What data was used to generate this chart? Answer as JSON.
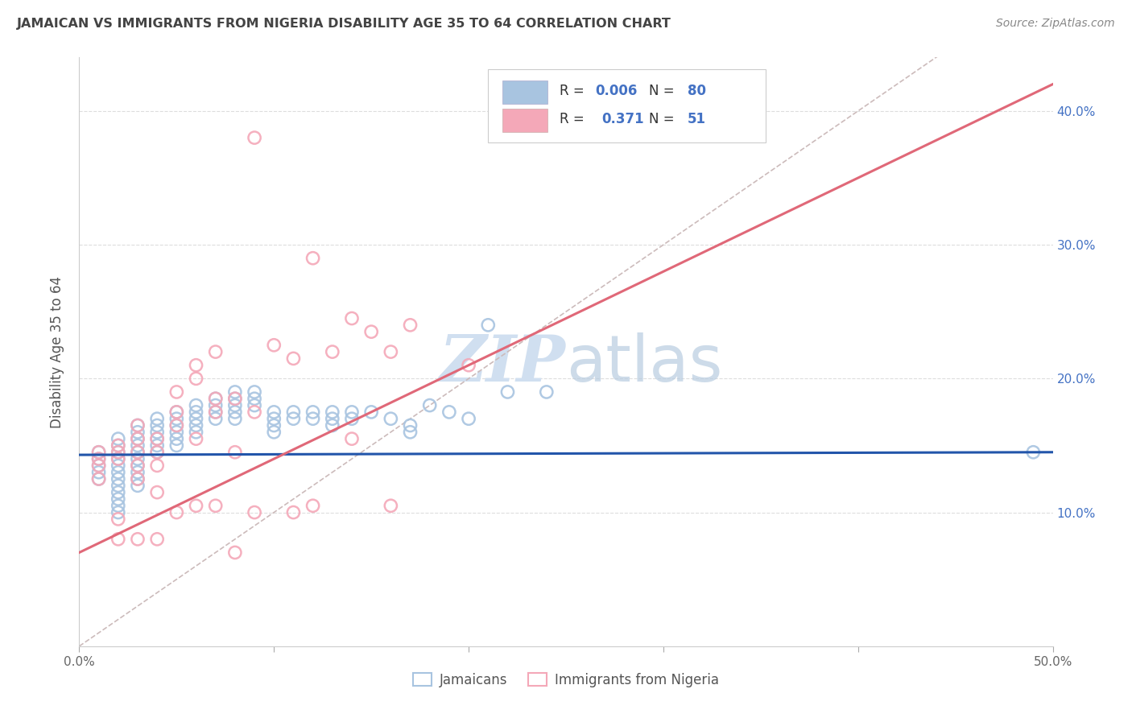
{
  "title": "JAMAICAN VS IMMIGRANTS FROM NIGERIA DISABILITY AGE 35 TO 64 CORRELATION CHART",
  "source": "Source: ZipAtlas.com",
  "ylabel": "Disability Age 35 to 64",
  "xlim": [
    0.0,
    0.5
  ],
  "ylim": [
    0.0,
    0.44
  ],
  "xticks": [
    0.0,
    0.1,
    0.2,
    0.3,
    0.4,
    0.5
  ],
  "yticks": [
    0.1,
    0.2,
    0.3,
    0.4
  ],
  "xtick_labels": [
    "0.0%",
    "",
    "",
    "",
    "",
    "50.0%"
  ],
  "ytick_labels_right": [
    "10.0%",
    "20.0%",
    "30.0%",
    "40.0%"
  ],
  "jamaican_color": "#a8c4e0",
  "nigeria_color": "#f4a8b8",
  "trendline1_color": "#2255aa",
  "trendline2_color": "#e06878",
  "diag_color": "#ccbbbb",
  "watermark_color": "#d0dff0",
  "background_color": "#ffffff",
  "grid_color": "#dddddd",
  "jamaicans_label": "Jamaicans",
  "nigeria_label": "Immigrants from Nigeria",
  "jamaican_scatter_x": [
    0.01,
    0.01,
    0.01,
    0.01,
    0.01,
    0.02,
    0.02,
    0.02,
    0.02,
    0.02,
    0.02,
    0.02,
    0.02,
    0.02,
    0.02,
    0.02,
    0.02,
    0.03,
    0.03,
    0.03,
    0.03,
    0.03,
    0.03,
    0.03,
    0.03,
    0.03,
    0.03,
    0.04,
    0.04,
    0.04,
    0.04,
    0.04,
    0.04,
    0.05,
    0.05,
    0.05,
    0.05,
    0.05,
    0.05,
    0.06,
    0.06,
    0.06,
    0.06,
    0.06,
    0.07,
    0.07,
    0.07,
    0.07,
    0.08,
    0.08,
    0.08,
    0.08,
    0.08,
    0.09,
    0.09,
    0.09,
    0.1,
    0.1,
    0.1,
    0.1,
    0.11,
    0.11,
    0.12,
    0.12,
    0.13,
    0.13,
    0.13,
    0.14,
    0.14,
    0.15,
    0.16,
    0.17,
    0.17,
    0.18,
    0.19,
    0.2,
    0.21,
    0.22,
    0.24,
    0.49
  ],
  "jamaican_scatter_y": [
    0.145,
    0.14,
    0.135,
    0.13,
    0.125,
    0.155,
    0.15,
    0.145,
    0.14,
    0.135,
    0.13,
    0.125,
    0.12,
    0.115,
    0.11,
    0.105,
    0.1,
    0.165,
    0.16,
    0.155,
    0.15,
    0.145,
    0.14,
    0.135,
    0.13,
    0.125,
    0.12,
    0.17,
    0.165,
    0.16,
    0.155,
    0.15,
    0.145,
    0.175,
    0.17,
    0.165,
    0.16,
    0.155,
    0.15,
    0.18,
    0.175,
    0.17,
    0.165,
    0.16,
    0.185,
    0.18,
    0.175,
    0.17,
    0.19,
    0.185,
    0.18,
    0.175,
    0.17,
    0.19,
    0.185,
    0.18,
    0.175,
    0.17,
    0.165,
    0.16,
    0.175,
    0.17,
    0.175,
    0.17,
    0.175,
    0.17,
    0.165,
    0.175,
    0.17,
    0.175,
    0.17,
    0.165,
    0.16,
    0.18,
    0.175,
    0.17,
    0.24,
    0.19,
    0.19,
    0.145
  ],
  "nigeria_scatter_x": [
    0.01,
    0.01,
    0.01,
    0.01,
    0.02,
    0.02,
    0.02,
    0.02,
    0.02,
    0.03,
    0.03,
    0.03,
    0.03,
    0.03,
    0.03,
    0.04,
    0.04,
    0.04,
    0.04,
    0.04,
    0.05,
    0.05,
    0.05,
    0.05,
    0.06,
    0.06,
    0.06,
    0.06,
    0.07,
    0.07,
    0.07,
    0.07,
    0.08,
    0.08,
    0.08,
    0.09,
    0.09,
    0.09,
    0.1,
    0.11,
    0.11,
    0.12,
    0.12,
    0.13,
    0.14,
    0.14,
    0.15,
    0.16,
    0.16,
    0.17,
    0.2
  ],
  "nigeria_scatter_y": [
    0.145,
    0.14,
    0.135,
    0.125,
    0.15,
    0.145,
    0.14,
    0.095,
    0.08,
    0.165,
    0.155,
    0.145,
    0.135,
    0.125,
    0.08,
    0.155,
    0.145,
    0.135,
    0.115,
    0.08,
    0.19,
    0.175,
    0.165,
    0.1,
    0.21,
    0.2,
    0.155,
    0.105,
    0.185,
    0.175,
    0.22,
    0.105,
    0.185,
    0.145,
    0.07,
    0.38,
    0.175,
    0.1,
    0.225,
    0.215,
    0.1,
    0.29,
    0.105,
    0.22,
    0.245,
    0.155,
    0.235,
    0.22,
    0.105,
    0.24,
    0.21
  ]
}
